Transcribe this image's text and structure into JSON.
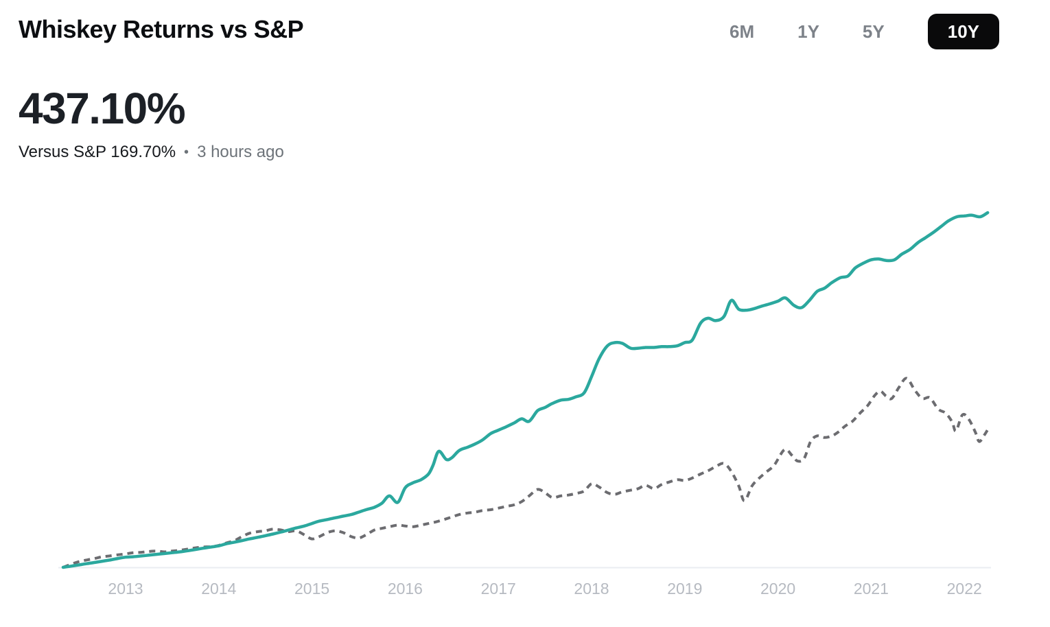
{
  "header": {
    "title": "Whiskey Returns vs S&P"
  },
  "ranges": {
    "items": [
      {
        "label": "6M",
        "active": false
      },
      {
        "label": "1Y",
        "active": false
      },
      {
        "label": "5Y",
        "active": false
      },
      {
        "label": "10Y",
        "active": true
      }
    ]
  },
  "stats": {
    "main_value": "437.10%",
    "versus_label": "Versus S&P 169.70%",
    "separator": "•",
    "updated": "3 hours ago"
  },
  "colors": {
    "whiskey_line": "#2BA89E",
    "sp_line": "#6C6C70",
    "axis_line": "#EAEDF1",
    "tick_label": "#B6BAC1",
    "active_button_bg": "#0A0A0B",
    "active_button_text": "#FFFFFF",
    "inactive_button_text": "#7D8289",
    "title_text": "#0C0E11",
    "value_text": "#1C2026",
    "muted_text": "#6D7379"
  },
  "chart_data": {
    "type": "line",
    "title": "Whiskey Returns vs S&P — 10Y cumulative return (%)",
    "unit": "%",
    "x_ticks": [
      2013,
      2014,
      2015,
      2016,
      2017,
      2018,
      2019,
      2020,
      2021,
      2022
    ],
    "x_range": [
      2012.33,
      2022.25
    ],
    "ylim": [
      0,
      450
    ],
    "grid": false,
    "legend": "none",
    "final_values": {
      "whiskey": 437.1,
      "sp": 169.7
    },
    "series": [
      {
        "name": "S&P",
        "style": "dashed",
        "color_key": "sp_line",
        "points": [
          [
            2012.33,
            0
          ],
          [
            2012.42,
            4
          ],
          [
            2012.5,
            7
          ],
          [
            2012.58,
            9
          ],
          [
            2012.67,
            11
          ],
          [
            2012.75,
            13
          ],
          [
            2012.83,
            14
          ],
          [
            2012.92,
            15.5
          ],
          [
            2013,
            16.5
          ],
          [
            2013.08,
            18
          ],
          [
            2013.17,
            18.5
          ],
          [
            2013.25,
            19.5
          ],
          [
            2013.33,
            20
          ],
          [
            2013.42,
            19
          ],
          [
            2013.5,
            20
          ],
          [
            2013.58,
            21
          ],
          [
            2013.67,
            22.5
          ],
          [
            2013.75,
            24
          ],
          [
            2013.83,
            25
          ],
          [
            2013.92,
            25.5
          ],
          [
            2014,
            27
          ],
          [
            2014.08,
            30
          ],
          [
            2014.17,
            33
          ],
          [
            2014.25,
            38
          ],
          [
            2014.33,
            42
          ],
          [
            2014.42,
            44
          ],
          [
            2014.5,
            45
          ],
          [
            2014.58,
            47
          ],
          [
            2014.67,
            46
          ],
          [
            2014.75,
            44
          ],
          [
            2014.83,
            45
          ],
          [
            2014.92,
            40
          ],
          [
            2015,
            35
          ],
          [
            2015.08,
            38
          ],
          [
            2015.17,
            43
          ],
          [
            2015.25,
            45
          ],
          [
            2015.33,
            43
          ],
          [
            2015.42,
            38
          ],
          [
            2015.5,
            36
          ],
          [
            2015.58,
            40
          ],
          [
            2015.67,
            46
          ],
          [
            2015.75,
            48
          ],
          [
            2015.83,
            50
          ],
          [
            2015.92,
            52
          ],
          [
            2016,
            51
          ],
          [
            2016.08,
            50
          ],
          [
            2016.17,
            52
          ],
          [
            2016.25,
            54
          ],
          [
            2016.33,
            56
          ],
          [
            2016.42,
            59
          ],
          [
            2016.5,
            62
          ],
          [
            2016.58,
            65
          ],
          [
            2016.67,
            67
          ],
          [
            2016.75,
            68
          ],
          [
            2016.83,
            70
          ],
          [
            2016.92,
            71
          ],
          [
            2017,
            73
          ],
          [
            2017.08,
            75
          ],
          [
            2017.17,
            77
          ],
          [
            2017.25,
            81
          ],
          [
            2017.33,
            88
          ],
          [
            2017.42,
            96
          ],
          [
            2017.5,
            92
          ],
          [
            2017.58,
            86
          ],
          [
            2017.67,
            88
          ],
          [
            2017.75,
            89
          ],
          [
            2017.83,
            91
          ],
          [
            2017.92,
            94
          ],
          [
            2018,
            103
          ],
          [
            2018.08,
            99
          ],
          [
            2018.17,
            92
          ],
          [
            2018.25,
            90
          ],
          [
            2018.33,
            93
          ],
          [
            2018.42,
            95
          ],
          [
            2018.5,
            97
          ],
          [
            2018.58,
            101
          ],
          [
            2018.67,
            97
          ],
          [
            2018.75,
            102
          ],
          [
            2018.83,
            105
          ],
          [
            2018.92,
            108
          ],
          [
            2019,
            107
          ],
          [
            2019.08,
            110
          ],
          [
            2019.17,
            115
          ],
          [
            2019.25,
            119
          ],
          [
            2019.33,
            124
          ],
          [
            2019.42,
            128
          ],
          [
            2019.5,
            118
          ],
          [
            2019.58,
            100
          ],
          [
            2019.64,
            82
          ],
          [
            2019.72,
            100
          ],
          [
            2019.79,
            109
          ],
          [
            2019.87,
            117
          ],
          [
            2019.96,
            126
          ],
          [
            2020.07,
            145
          ],
          [
            2020.15,
            138
          ],
          [
            2020.21,
            131
          ],
          [
            2020.28,
            134
          ],
          [
            2020.35,
            155
          ],
          [
            2020.42,
            162
          ],
          [
            2020.5,
            160
          ],
          [
            2020.58,
            162
          ],
          [
            2020.65,
            167
          ],
          [
            2020.72,
            174
          ],
          [
            2020.8,
            180
          ],
          [
            2020.88,
            190
          ],
          [
            2020.96,
            199
          ],
          [
            2021.04,
            212
          ],
          [
            2021.1,
            217
          ],
          [
            2021.16,
            211
          ],
          [
            2021.22,
            208
          ],
          [
            2021.3,
            222
          ],
          [
            2021.38,
            233
          ],
          [
            2021.47,
            218
          ],
          [
            2021.55,
            208
          ],
          [
            2021.63,
            209
          ],
          [
            2021.72,
            195
          ],
          [
            2021.8,
            190
          ],
          [
            2021.87,
            179
          ],
          [
            2021.91,
            168
          ],
          [
            2021.98,
            188
          ],
          [
            2022.05,
            182
          ],
          [
            2022.12,
            166
          ],
          [
            2022.16,
            155
          ],
          [
            2022.22,
            164
          ],
          [
            2022.25,
            169.7
          ]
        ]
      },
      {
        "name": "Whiskey Returns",
        "style": "solid",
        "color_key": "whiskey_line",
        "points": [
          [
            2012.33,
            0
          ],
          [
            2012.42,
            1.5
          ],
          [
            2012.5,
            3
          ],
          [
            2012.58,
            4.5
          ],
          [
            2012.67,
            6
          ],
          [
            2012.75,
            7.5
          ],
          [
            2012.83,
            9
          ],
          [
            2012.92,
            11
          ],
          [
            2013,
            12.5
          ],
          [
            2013.08,
            13
          ],
          [
            2013.17,
            14
          ],
          [
            2013.25,
            15
          ],
          [
            2013.33,
            16
          ],
          [
            2013.42,
            17
          ],
          [
            2013.5,
            18
          ],
          [
            2013.58,
            19
          ],
          [
            2013.67,
            20.5
          ],
          [
            2013.75,
            22
          ],
          [
            2013.83,
            23.5
          ],
          [
            2013.92,
            25
          ],
          [
            2014,
            26.5
          ],
          [
            2014.08,
            29
          ],
          [
            2014.17,
            31
          ],
          [
            2014.25,
            33
          ],
          [
            2014.33,
            35
          ],
          [
            2014.42,
            37
          ],
          [
            2014.5,
            39
          ],
          [
            2014.58,
            41
          ],
          [
            2014.67,
            43.5
          ],
          [
            2014.75,
            46
          ],
          [
            2014.83,
            48.5
          ],
          [
            2014.92,
            51
          ],
          [
            2015,
            54
          ],
          [
            2015.08,
            57
          ],
          [
            2015.17,
            59
          ],
          [
            2015.25,
            61
          ],
          [
            2015.33,
            63
          ],
          [
            2015.42,
            65
          ],
          [
            2015.5,
            68
          ],
          [
            2015.58,
            71
          ],
          [
            2015.67,
            74
          ],
          [
            2015.75,
            79
          ],
          [
            2015.83,
            88
          ],
          [
            2015.92,
            80
          ],
          [
            2016,
            98
          ],
          [
            2016.08,
            104
          ],
          [
            2016.17,
            108
          ],
          [
            2016.25,
            115
          ],
          [
            2016.3,
            126
          ],
          [
            2016.36,
            143
          ],
          [
            2016.44,
            133
          ],
          [
            2016.5,
            135
          ],
          [
            2016.58,
            144
          ],
          [
            2016.67,
            148
          ],
          [
            2016.75,
            152
          ],
          [
            2016.83,
            157
          ],
          [
            2016.92,
            165
          ],
          [
            2017,
            169
          ],
          [
            2017.08,
            173
          ],
          [
            2017.17,
            178
          ],
          [
            2017.25,
            183
          ],
          [
            2017.33,
            180
          ],
          [
            2017.42,
            193
          ],
          [
            2017.5,
            197
          ],
          [
            2017.58,
            202
          ],
          [
            2017.67,
            206
          ],
          [
            2017.75,
            207
          ],
          [
            2017.83,
            210
          ],
          [
            2017.92,
            215
          ],
          [
            2018,
            235
          ],
          [
            2018.08,
            257
          ],
          [
            2018.17,
            273
          ],
          [
            2018.25,
            277
          ],
          [
            2018.33,
            276
          ],
          [
            2018.42,
            270
          ],
          [
            2018.5,
            270
          ],
          [
            2018.58,
            271
          ],
          [
            2018.67,
            271
          ],
          [
            2018.75,
            272
          ],
          [
            2018.83,
            272
          ],
          [
            2018.92,
            273
          ],
          [
            2019,
            277
          ],
          [
            2019.08,
            280
          ],
          [
            2019.17,
            301
          ],
          [
            2019.25,
            307
          ],
          [
            2019.33,
            304
          ],
          [
            2019.42,
            309
          ],
          [
            2019.5,
            329
          ],
          [
            2019.58,
            318
          ],
          [
            2019.67,
            317
          ],
          [
            2019.75,
            319
          ],
          [
            2019.83,
            322
          ],
          [
            2019.92,
            325
          ],
          [
            2020,
            328
          ],
          [
            2020.08,
            332
          ],
          [
            2020.17,
            323
          ],
          [
            2020.25,
            320
          ],
          [
            2020.33,
            328
          ],
          [
            2020.42,
            340
          ],
          [
            2020.5,
            344
          ],
          [
            2020.58,
            351
          ],
          [
            2020.67,
            357
          ],
          [
            2020.75,
            359
          ],
          [
            2020.83,
            369
          ],
          [
            2020.92,
            375
          ],
          [
            2021,
            379
          ],
          [
            2021.08,
            380
          ],
          [
            2021.17,
            378
          ],
          [
            2021.25,
            379
          ],
          [
            2021.33,
            386
          ],
          [
            2021.42,
            392
          ],
          [
            2021.5,
            400
          ],
          [
            2021.58,
            406
          ],
          [
            2021.67,
            413
          ],
          [
            2021.75,
            420
          ],
          [
            2021.83,
            427
          ],
          [
            2021.92,
            432
          ],
          [
            2022,
            433
          ],
          [
            2022.08,
            434
          ],
          [
            2022.17,
            432
          ],
          [
            2022.25,
            437.1
          ]
        ]
      }
    ]
  }
}
